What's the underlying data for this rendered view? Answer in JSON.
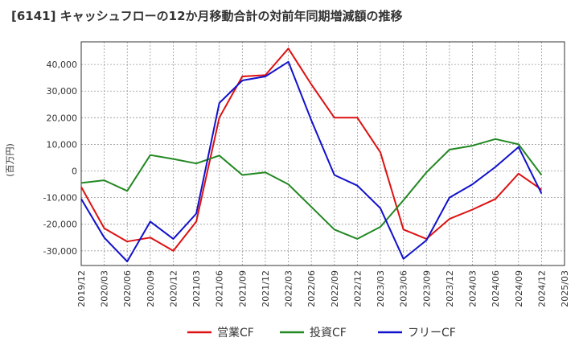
{
  "chart_data": {
    "type": "line",
    "title": "[6141]  キャッシュフローの12か月移動合計の対前年同期増減額の推移",
    "ylabel": "(百万円)",
    "xlabel": "",
    "ylim": [
      -35500,
      48500
    ],
    "yticks": [
      -30000,
      -20000,
      -10000,
      0,
      10000,
      20000,
      30000,
      40000
    ],
    "ytick_labels": [
      "-30,000",
      "-20,000",
      "-10,000",
      "0",
      "10,000",
      "20,000",
      "30,000",
      "40,000"
    ],
    "categories": [
      "2019/12",
      "2020/03",
      "2020/06",
      "2020/09",
      "2020/12",
      "2021/03",
      "2021/06",
      "2021/09",
      "2021/12",
      "2022/03",
      "2022/06",
      "2022/09",
      "2022/12",
      "2023/03",
      "2023/06",
      "2023/09",
      "2023/12",
      "2024/03",
      "2024/06",
      "2024/09",
      "2024/12",
      "2025/03"
    ],
    "grid": true,
    "legend_position": "bottom",
    "series": [
      {
        "name": "営業CF",
        "color": "#dd1111",
        "values": [
          -6000,
          -21500,
          -26500,
          -25000,
          -30000,
          -19000,
          20000,
          35500,
          36000,
          46000,
          32500,
          20000,
          20000,
          7000,
          -22000,
          -25500,
          -18000,
          -14500,
          -10500,
          -1000,
          -7000,
          null
        ]
      },
      {
        "name": "投資CF",
        "color": "#228822",
        "values": [
          -4500,
          -3500,
          -7500,
          6000,
          4500,
          2800,
          5800,
          -1500,
          -500,
          -5000,
          -13500,
          -22000,
          -25500,
          -21000,
          -11000,
          -500,
          8000,
          9500,
          12000,
          10000,
          -1500,
          null
        ]
      },
      {
        "name": "フリーCF",
        "color": "#1111cc",
        "values": [
          -10500,
          -25000,
          -34000,
          -19000,
          -25500,
          -16000,
          25500,
          34000,
          35500,
          41000,
          19000,
          -1500,
          -5500,
          -14000,
          -33000,
          -26000,
          -10000,
          -5000,
          1500,
          9000,
          -8500,
          null
        ]
      }
    ]
  }
}
